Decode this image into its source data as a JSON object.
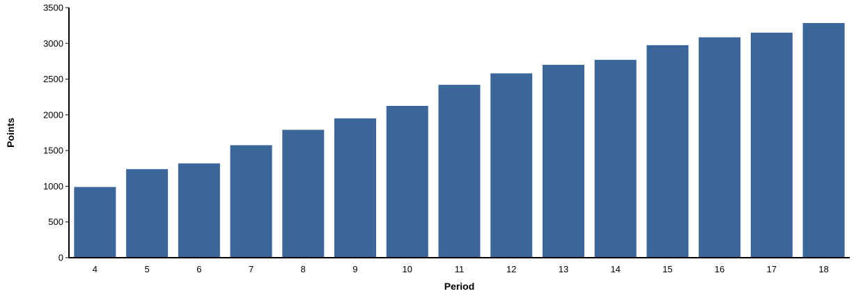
{
  "chart_data": {
    "type": "bar",
    "title": "",
    "xlabel": "Period",
    "ylabel": "Points",
    "categories": [
      "4",
      "5",
      "6",
      "7",
      "8",
      "9",
      "10",
      "11",
      "12",
      "13",
      "14",
      "15",
      "16",
      "17",
      "18"
    ],
    "values": [
      990,
      1240,
      1320,
      1575,
      1790,
      1950,
      2125,
      2420,
      2580,
      2700,
      2770,
      2975,
      3085,
      3150,
      3285
    ],
    "ylim": [
      0,
      3500
    ],
    "yticks": [
      0,
      500,
      1000,
      1500,
      2000,
      2500,
      3000,
      3500
    ],
    "grid": false,
    "legend": "none",
    "bar_color": "#3b6699"
  }
}
